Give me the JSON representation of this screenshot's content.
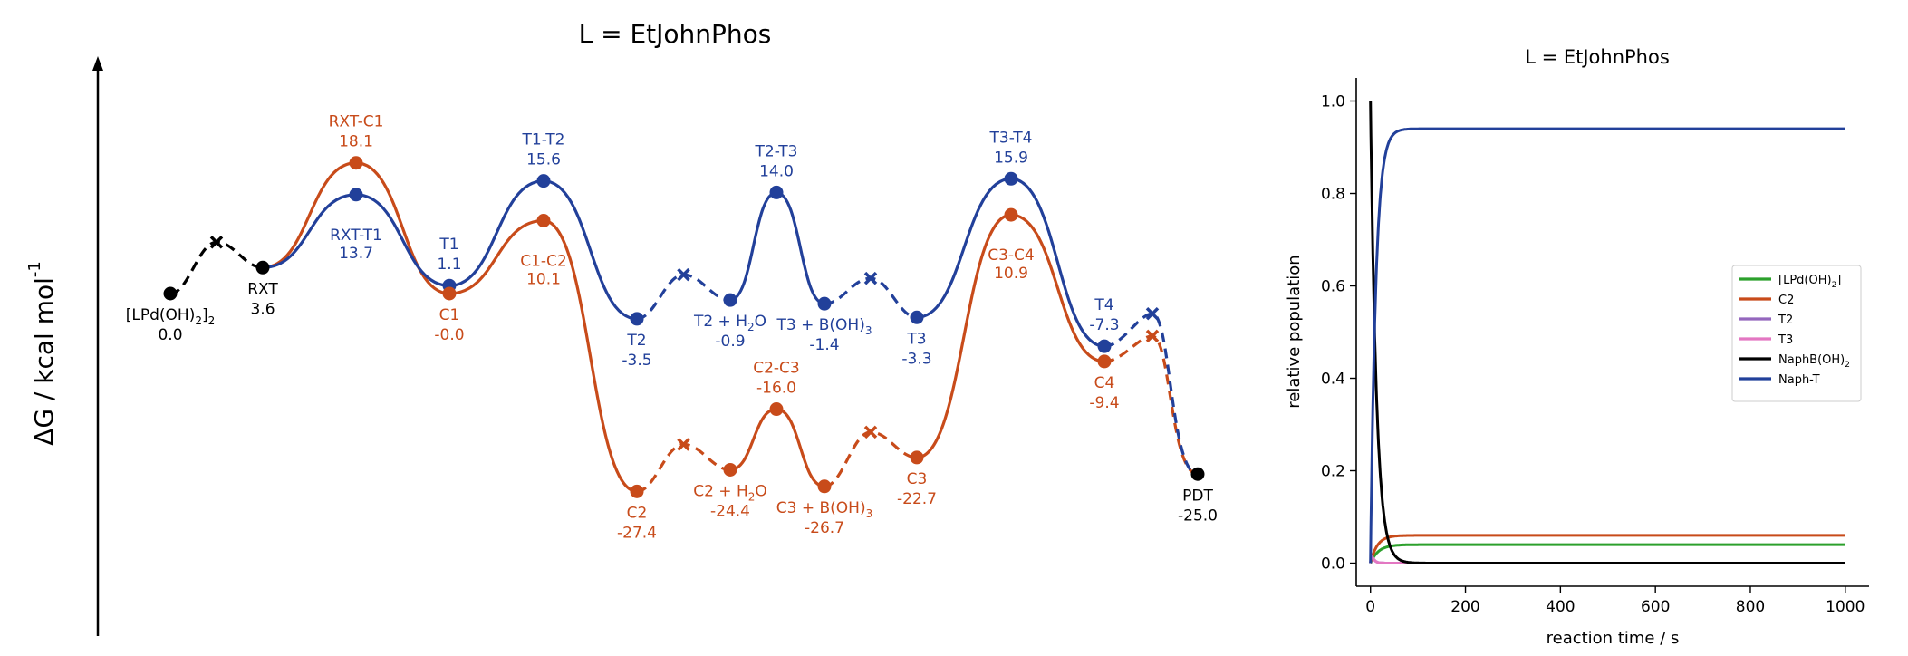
{
  "chart_data": [
    {
      "type": "line",
      "title": "L = EtJohnPhos",
      "ylabel": "ΔG / kcal mol",
      "ylabel_sup": "-1",
      "colors": {
        "blue": "#22409a",
        "orange": "#c84b1a",
        "black": "#000000"
      },
      "points": [
        {
          "id": "start",
          "label": "[LPd(OH)",
          "sub": "2",
          "label_post": "]",
          "sub2": "2",
          "value": "0.0",
          "y": 0.0,
          "color": "black"
        },
        {
          "id": "rxt",
          "label": "RXT",
          "value": "3.6",
          "y": 3.6,
          "color": "black"
        },
        {
          "id": "rxt-c1",
          "label": "RXT-C1",
          "value": "18.1",
          "y": 18.1,
          "color": "orange"
        },
        {
          "id": "rxt-t1",
          "label": "RXT-T1",
          "value": "13.7",
          "y": 13.7,
          "color": "blue"
        },
        {
          "id": "t1",
          "label": "T1",
          "value": "1.1",
          "y": 1.1,
          "color": "blue"
        },
        {
          "id": "c1",
          "label": "C1",
          "value": "-0.0",
          "y": 0.0,
          "color": "orange"
        },
        {
          "id": "t1-t2",
          "label": "T1-T2",
          "value": "15.6",
          "y": 15.6,
          "color": "blue"
        },
        {
          "id": "c1-c2",
          "label": "C1-C2",
          "value": "10.1",
          "y": 10.1,
          "color": "orange"
        },
        {
          "id": "t2",
          "label": "T2",
          "value": "-3.5",
          "y": -3.5,
          "color": "blue"
        },
        {
          "id": "c2",
          "label": "C2",
          "value": "-27.4",
          "y": -27.4,
          "color": "orange"
        },
        {
          "id": "t2-h2o",
          "label": "T2 + H",
          "sub": "2",
          "label_post": "O",
          "value": "-0.9",
          "y": -0.9,
          "color": "blue"
        },
        {
          "id": "c2-h2o",
          "label": "C2 + H",
          "sub": "2",
          "label_post": "O",
          "value": "-24.4",
          "y": -24.4,
          "color": "orange"
        },
        {
          "id": "t2-t3",
          "label": "T2-T3",
          "value": "14.0",
          "y": 14.0,
          "color": "blue"
        },
        {
          "id": "c2-c3",
          "label": "C2-C3",
          "value": "-16.0",
          "y": -16.0,
          "color": "orange"
        },
        {
          "id": "t3-boh3",
          "label": "T3 + B(OH)",
          "sub": "3",
          "value": "-1.4",
          "y": -1.4,
          "color": "blue"
        },
        {
          "id": "c3-boh3",
          "label": "C3 + B(OH)",
          "sub": "3",
          "value": "-26.7",
          "y": -26.7,
          "color": "orange"
        },
        {
          "id": "t3",
          "label": "T3",
          "value": "-3.3",
          "y": -3.3,
          "color": "blue"
        },
        {
          "id": "c3",
          "label": "C3",
          "value": "-22.7",
          "y": -22.7,
          "color": "orange"
        },
        {
          "id": "t3-t4",
          "label": "T3-T4",
          "value": "15.9",
          "y": 15.9,
          "color": "blue"
        },
        {
          "id": "c3-c4",
          "label": "C3-C4",
          "value": "10.9",
          "y": 10.9,
          "color": "orange"
        },
        {
          "id": "t4",
          "label": "T4",
          "value": "-7.3",
          "y": -7.3,
          "color": "blue"
        },
        {
          "id": "c4",
          "label": "C4",
          "value": "-9.4",
          "y": -9.4,
          "color": "orange"
        },
        {
          "id": "pdt",
          "label": "PDT",
          "value": "-25.0",
          "y": -25.0,
          "color": "black"
        }
      ]
    },
    {
      "type": "line",
      "title": "L = EtJohnPhos",
      "xlabel": "reaction time / s",
      "ylabel": "relative population",
      "xlim": [
        -30,
        1050
      ],
      "ylim": [
        -0.05,
        1.05
      ],
      "xticks": [
        0,
        200,
        400,
        600,
        800,
        1000
      ],
      "yticks": [
        "0.0",
        "0.2",
        "0.4",
        "0.6",
        "0.8",
        "1.0"
      ],
      "legend_position": "center-right",
      "series": [
        {
          "name": "[LPd(OH)",
          "sub": "2",
          "name_post": "]",
          "color": "#2ca02c",
          "final": 0.04
        },
        {
          "name": "C2",
          "color": "#c84b1a",
          "final": 0.06
        },
        {
          "name": "T2",
          "color": "#9467bd",
          "final": 0.0
        },
        {
          "name": "T3",
          "color": "#e377c2",
          "final": 0.0
        },
        {
          "name": "NaphB(OH)",
          "sub": "2",
          "color": "#000000",
          "final": 0.0
        },
        {
          "name": "Naph-T",
          "color": "#22409a",
          "final": 0.94
        }
      ]
    }
  ]
}
